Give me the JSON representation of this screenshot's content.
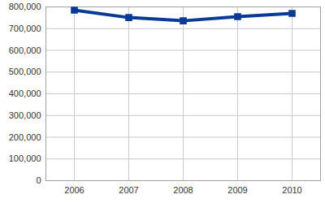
{
  "chart_data": {
    "type": "line",
    "categories": [
      "2006",
      "2007",
      "2008",
      "2009",
      "2010"
    ],
    "values": [
      785000,
      751000,
      736000,
      755000,
      770000
    ],
    "color": "#0b3a96",
    "marker": "square",
    "line_style": "solid",
    "ylim": [
      0,
      800000
    ],
    "yticks": [
      0,
      {
        "value": 100000,
        "label": "100,000"
      },
      {
        "value": 200000,
        "label": "200,000"
      },
      {
        "value": 300000,
        "label": "300,000"
      },
      {
        "value": 400000,
        "label": "400,000"
      },
      {
        "value": 500000,
        "label": "500,000"
      },
      {
        "value": 600000,
        "label": "600,000"
      },
      {
        "value": 700000,
        "label": "700,000"
      },
      {
        "value": 800000,
        "label": "800,000"
      }
    ],
    "grid": true
  }
}
